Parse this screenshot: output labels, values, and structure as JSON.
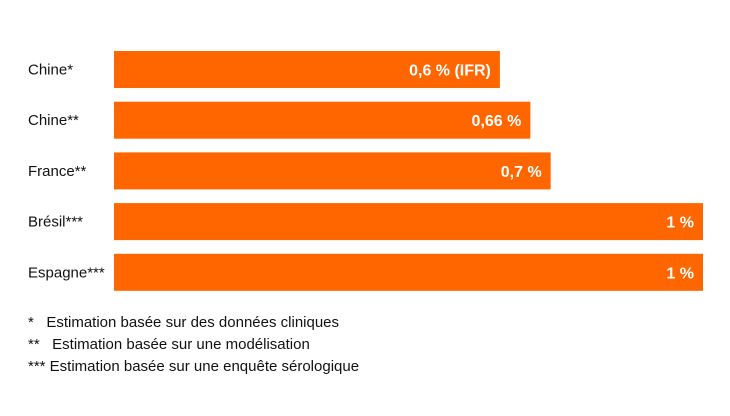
{
  "chart_data": {
    "type": "bar",
    "orientation": "horizontal",
    "categories": [
      "Chine*",
      "Chine**",
      "France**",
      "Brésil***",
      "Espagne***"
    ],
    "values": [
      0.6,
      0.66,
      0.7,
      1,
      1
    ],
    "data_labels": [
      "0,6 % (IFR)",
      "0,66 %",
      "0,7 %",
      "1 %",
      "1 %"
    ],
    "xlim": [
      -0.16,
      1
    ],
    "bar_color": "#ff6600",
    "grid": false,
    "legend": "none"
  },
  "notes": [
    "*   Estimation basée sur des données cliniques",
    "**   Estimation basée sur une modélisation",
    "*** Estimation basée sur une enquête sérologique"
  ]
}
